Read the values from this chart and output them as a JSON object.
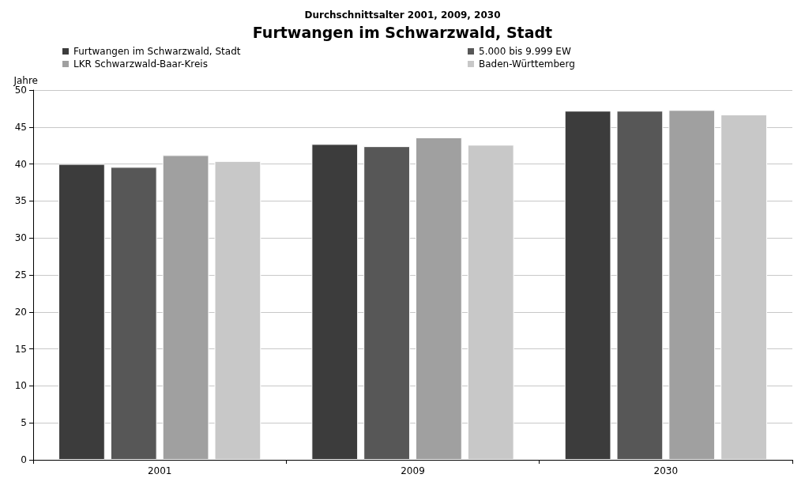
{
  "chart_data": {
    "type": "bar",
    "subtitle": "Durchschnittsalter 2001, 2009, 2030",
    "title": "Furtwangen im Schwarzwald, Stadt",
    "ylabel": "Jahre",
    "categories": [
      "2001",
      "2009",
      "2030"
    ],
    "series": [
      {
        "name": "Furtwangen im Schwarzwald, Stadt",
        "color": "#3c3c3c",
        "values": [
          40.0,
          42.7,
          47.2
        ]
      },
      {
        "name": "5.000 bis 9.999 EW",
        "color": "#575757",
        "values": [
          39.6,
          42.4,
          47.2
        ]
      },
      {
        "name": "LKR Schwarzwald-Baar-Kreis",
        "color": "#a0a0a0",
        "values": [
          41.2,
          43.6,
          47.3
        ]
      },
      {
        "name": "Baden-Württemberg",
        "color": "#c8c8c8",
        "values": [
          40.4,
          42.6,
          46.7
        ]
      }
    ],
    "ylim": [
      0,
      50
    ],
    "yticks": [
      0,
      5,
      10,
      15,
      20,
      25,
      30,
      35,
      40,
      45,
      50
    ],
    "grid": "y",
    "legend": "top"
  }
}
